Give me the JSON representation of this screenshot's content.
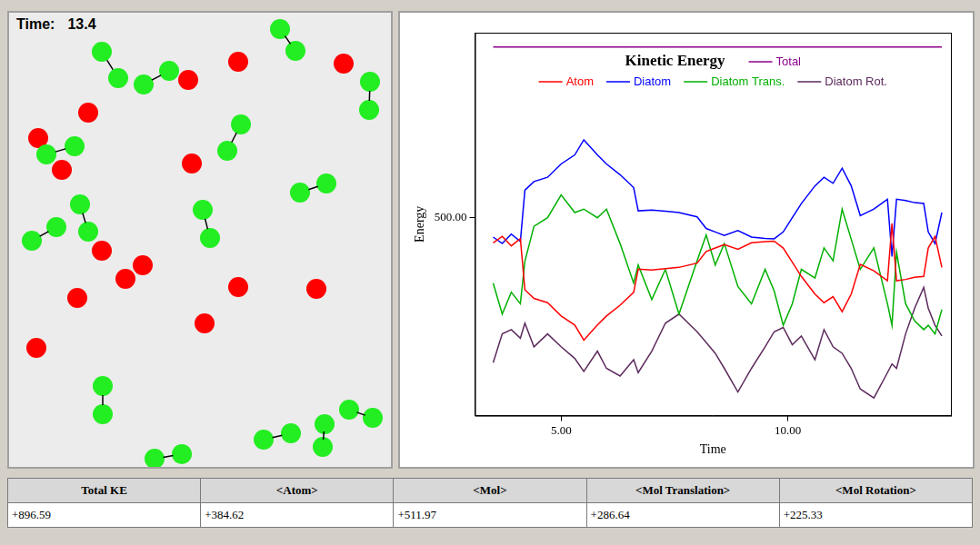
{
  "panel": {
    "time_label": "Time:",
    "time_value": "13.4"
  },
  "chart_data": {
    "type": "line",
    "title": "Kinetic Energy",
    "x_label": "Time",
    "y_label": "Energy",
    "x": [
      3.5,
      3.7,
      3.9,
      4.1,
      4.2,
      4.4,
      4.7,
      5,
      5.3,
      5.5,
      5.8,
      6,
      6.3,
      6.6,
      6.7,
      7,
      7.3,
      7.6,
      8,
      8.2,
      8.4,
      8.6,
      8.9,
      9.2,
      9.5,
      9.7,
      9.9,
      10.1,
      10.3,
      10.6,
      10.8,
      11,
      11.2,
      11.4,
      11.6,
      11.9,
      12.2,
      12.3,
      12.4,
      12.6,
      12.8,
      13,
      13.1,
      13.25,
      13.4
    ],
    "series": [
      {
        "name": "Total",
        "color": "#8b008b",
        "values": [
          896.59,
          896.59,
          896.59,
          896.59,
          896.59,
          896.59,
          896.59,
          896.59,
          896.59,
          896.59,
          896.59,
          896.59,
          896.59,
          896.59,
          896.59,
          896.59,
          896.59,
          896.59,
          896.59,
          896.59,
          896.59,
          896.59,
          896.59,
          896.59,
          896.59,
          896.59,
          896.59,
          896.59,
          896.59,
          896.59,
          896.59,
          896.59,
          896.59,
          896.59,
          896.59,
          896.59,
          896.59,
          896.59,
          896.59,
          896.59,
          896.59,
          896.59,
          896.59,
          896.59,
          896.59
        ]
      },
      {
        "name": "Atom",
        "color": "#ff0000",
        "values": [
          441.6,
          456.6,
          434.6,
          451.6,
          332.6,
          312.6,
          302.6,
          271.6,
          250.6,
          215.6,
          250.6,
          271.6,
          296.6,
          326.6,
          380.6,
          378.6,
          381.6,
          384.6,
          394.6,
          421.6,
          429.6,
          437.6,
          426.6,
          441.6,
          444.6,
          445.6,
          429.6,
          396.6,
          363.6,
          322.6,
          302.6,
          316.6,
          281.6,
          322.6,
          391.6,
          376.6,
          353.6,
          486.6,
          353.6,
          356.6,
          361.6,
          363.6,
          429.6,
          456.6,
          384.62
        ]
      },
      {
        "name": "Diatom",
        "color": "#0000ff",
        "values": [
          455,
          440,
          462,
          445,
          564,
          584,
          594,
          625,
          646,
          681,
          646,
          625,
          600,
          570,
          516,
          518,
          515,
          512,
          502,
          475,
          467,
          459,
          470,
          455,
          452,
          451,
          467,
          500,
          533,
          574,
          594,
          580,
          615,
          574,
          505,
          520,
          543,
          410,
          543,
          540,
          535,
          533,
          467,
          440,
          511.97
        ]
      },
      {
        "name": "Diatom Trans.",
        "color": "#00b000",
        "values": [
          348,
          276,
          327,
          300,
          399,
          480,
          500,
          553,
          512,
          520,
          500,
          520,
          440,
          348,
          390,
          310,
          380,
          276,
          400,
          460,
          390,
          440,
          340,
          300,
          380,
          330,
          250,
          300,
          380,
          360,
          430,
          400,
          520,
          450,
          380,
          430,
          300,
          250,
          420,
          300,
          260,
          240,
          250,
          230,
          286.64
        ]
      },
      {
        "name": "Diatom Rot.",
        "color": "#5c2a5c",
        "values": [
          163,
          230,
          240,
          220,
          255,
          200,
          230,
          200,
          173,
          143,
          190,
          150,
          132,
          170,
          140,
          190,
          255,
          276,
          235,
          210,
          185,
          150,
          95,
          150,
          200,
          235,
          245,
          205,
          225,
          170,
          240,
          200,
          185,
          150,
          102,
          81,
          140,
          160,
          150,
          230,
          290,
          338,
          290,
          250,
          225.33
        ]
      }
    ],
    "xlim": [
      3.1,
      13.6
    ],
    "xticks": [
      {
        "value": 5,
        "label": "5.00"
      },
      {
        "value": 10,
        "label": "10.00"
      }
    ],
    "ylim": [
      40,
      930
    ],
    "yticks": [
      {
        "value": 500,
        "label": "500.00"
      }
    ],
    "grid": false,
    "legend": "top"
  },
  "table": {
    "header": [
      "Total KE",
      "<Atom>",
      "<Mol>",
      "<Mol Translation>",
      "<Mol Rotation>"
    ],
    "rows": [
      [
        "+896.59",
        "+384.62",
        "+511.97",
        "+286.64",
        "+225.33"
      ]
    ]
  }
}
